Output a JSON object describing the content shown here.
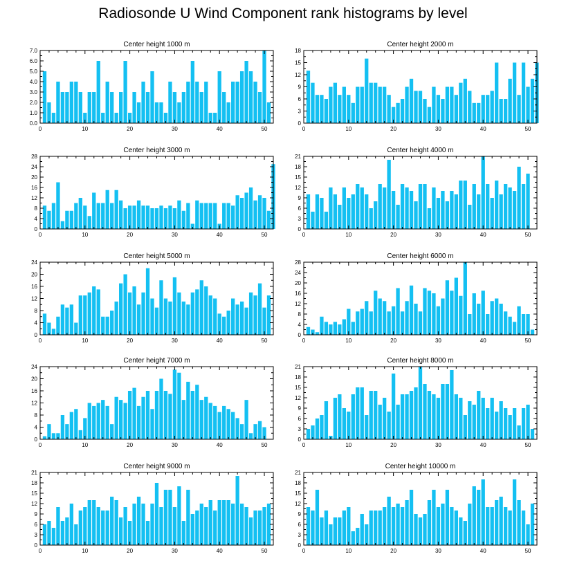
{
  "title": "Radiosonde U Wind Component rank histograms by level",
  "colors": {
    "bar": "#14c0f2",
    "axis": "#000000",
    "background": "#ffffff"
  },
  "chart_data": [
    {
      "type": "bar",
      "title": "Center height 1000 m",
      "xlabel": "",
      "ylabel": "",
      "xlim": [
        0,
        52
      ],
      "ylim": [
        0,
        7
      ],
      "xticks": [
        0,
        10,
        20,
        30,
        40,
        50
      ],
      "yticks": [
        0,
        1,
        2,
        3,
        4,
        5,
        6,
        7
      ],
      "ytick_labels": [
        "0.0",
        "1.0",
        "2.0",
        "3.0",
        "4.0",
        "5.0",
        "6.0",
        "7.0"
      ],
      "values": [
        5,
        2,
        1,
        4,
        3,
        3,
        4,
        4,
        3,
        1,
        3,
        3,
        6,
        1,
        4,
        3,
        1,
        3,
        6,
        1,
        3,
        2,
        4,
        3,
        5,
        2,
        2,
        1,
        4,
        3,
        2,
        3,
        4,
        6,
        4,
        3,
        4,
        1,
        1,
        5,
        3,
        2,
        4,
        4,
        5,
        6,
        5,
        4,
        3,
        7,
        2
      ]
    },
    {
      "type": "bar",
      "title": "Center height 2000 m",
      "xlabel": "",
      "ylabel": "",
      "xlim": [
        0,
        52
      ],
      "ylim": [
        0,
        18
      ],
      "xticks": [
        0,
        10,
        20,
        30,
        40,
        50
      ],
      "yticks": [
        0,
        3,
        6,
        9,
        12,
        15,
        18
      ],
      "ytick_labels": [
        "0",
        "3",
        "6",
        "9",
        "12",
        "15",
        "18"
      ],
      "values": [
        13,
        10,
        7,
        7,
        6,
        9,
        10,
        7,
        9,
        7,
        5,
        9,
        9,
        16,
        10,
        10,
        9,
        9,
        7,
        4,
        5,
        6,
        9,
        11,
        8,
        8,
        6,
        4,
        9,
        7,
        6,
        9,
        9,
        7,
        10,
        11,
        8,
        5,
        5,
        7,
        7,
        8,
        15,
        6,
        6,
        11,
        15,
        7,
        15,
        9,
        11,
        15
      ]
    },
    {
      "type": "bar",
      "title": "Center height 3000 m",
      "xlabel": "",
      "ylabel": "",
      "xlim": [
        0,
        52
      ],
      "ylim": [
        0,
        28
      ],
      "xticks": [
        0,
        10,
        20,
        30,
        40,
        50
      ],
      "yticks": [
        0,
        4,
        8,
        12,
        16,
        20,
        24,
        28
      ],
      "ytick_labels": [
        "0",
        "4",
        "8",
        "12",
        "16",
        "20",
        "24",
        "28"
      ],
      "values": [
        9,
        7,
        10,
        18,
        3,
        7,
        7,
        10,
        12,
        9,
        5,
        14,
        10,
        10,
        15,
        10,
        15,
        11,
        8,
        9,
        9,
        11,
        9,
        9,
        8,
        8,
        9,
        8,
        9,
        8,
        11,
        7,
        10,
        2,
        11,
        10,
        10,
        10,
        10,
        2,
        10,
        10,
        9,
        13,
        12,
        14,
        16,
        11,
        13,
        12,
        7,
        25
      ]
    },
    {
      "type": "bar",
      "title": "Center height 4000 m",
      "xlabel": "",
      "ylabel": "",
      "xlim": [
        0,
        52
      ],
      "ylim": [
        0,
        21
      ],
      "xticks": [
        0,
        10,
        20,
        30,
        40,
        50
      ],
      "yticks": [
        0,
        3,
        6,
        9,
        12,
        15,
        18,
        21
      ],
      "ytick_labels": [
        "0",
        "3",
        "6",
        "9",
        "12",
        "15",
        "18",
        "21"
      ],
      "values": [
        10,
        5,
        10,
        9,
        5,
        12,
        10,
        7,
        12,
        9,
        10,
        13,
        12,
        10,
        6,
        8,
        13,
        12,
        20,
        11,
        7,
        13,
        12,
        11,
        8,
        13,
        13,
        6,
        12,
        9,
        11,
        8,
        11,
        10,
        14,
        14,
        7,
        13,
        10,
        21,
        13,
        9,
        14,
        10,
        13,
        12,
        11,
        18,
        13,
        16
      ]
    },
    {
      "type": "bar",
      "title": "Center height 5000 m",
      "xlabel": "",
      "ylabel": "",
      "xlim": [
        0,
        52
      ],
      "ylim": [
        0,
        24
      ],
      "xticks": [
        0,
        10,
        20,
        30,
        40,
        50
      ],
      "yticks": [
        0,
        4,
        8,
        12,
        16,
        20,
        24
      ],
      "ytick_labels": [
        "0",
        "4",
        "8",
        "12",
        "16",
        "20",
        "24"
      ],
      "values": [
        7,
        4,
        2,
        6,
        10,
        9,
        10,
        4,
        13,
        13,
        14,
        16,
        15,
        6,
        6,
        8,
        11,
        17,
        20,
        14,
        16,
        10,
        14,
        22,
        12,
        9,
        18,
        12,
        11,
        19,
        14,
        11,
        10,
        14,
        15,
        18,
        16,
        13,
        12,
        7,
        6,
        8,
        12,
        10,
        11,
        9,
        14,
        13,
        17,
        9,
        13
      ]
    },
    {
      "type": "bar",
      "title": "Center height 6000 m",
      "xlabel": "",
      "ylabel": "",
      "xlim": [
        0,
        52
      ],
      "ylim": [
        0,
        28
      ],
      "xticks": [
        0,
        10,
        20,
        30,
        40,
        50
      ],
      "yticks": [
        0,
        4,
        8,
        12,
        16,
        20,
        24,
        28
      ],
      "ytick_labels": [
        "0",
        "4",
        "8",
        "12",
        "16",
        "20",
        "24",
        "28"
      ],
      "values": [
        3,
        2,
        1,
        7,
        5,
        4,
        5,
        4,
        6,
        10,
        5,
        9,
        10,
        13,
        9,
        17,
        14,
        13,
        9,
        11,
        18,
        9,
        13,
        19,
        12,
        9,
        18,
        17,
        16,
        11,
        14,
        21,
        17,
        22,
        15,
        28,
        8,
        16,
        12,
        17,
        8,
        13,
        14,
        12,
        9,
        7,
        5,
        11,
        8,
        8,
        2
      ]
    },
    {
      "type": "bar",
      "title": "Center height 7000 m",
      "xlabel": "",
      "ylabel": "",
      "xlim": [
        0,
        52
      ],
      "ylim": [
        0,
        24
      ],
      "xticks": [
        0,
        10,
        20,
        30,
        40,
        50
      ],
      "yticks": [
        0,
        4,
        8,
        12,
        16,
        20,
        24
      ],
      "ytick_labels": [
        "0",
        "4",
        "8",
        "12",
        "16",
        "20",
        "24"
      ],
      "values": [
        1,
        5,
        2,
        2,
        8,
        5,
        9,
        10,
        3,
        7,
        12,
        11,
        12,
        13,
        11,
        5,
        14,
        13,
        12,
        16,
        17,
        11,
        14,
        16,
        10,
        16,
        20,
        16,
        15,
        23,
        22,
        13,
        19,
        16,
        18,
        13,
        14,
        12,
        11,
        9,
        11,
        10,
        9,
        7,
        5,
        13,
        2,
        5,
        6,
        4
      ]
    },
    {
      "type": "bar",
      "title": "Center height 8000 m",
      "xlabel": "",
      "ylabel": "",
      "xlim": [
        0,
        52
      ],
      "ylim": [
        0,
        21
      ],
      "xticks": [
        0,
        10,
        20,
        30,
        40,
        50
      ],
      "yticks": [
        0,
        3,
        6,
        9,
        12,
        15,
        18,
        21
      ],
      "ytick_labels": [
        "0",
        "3",
        "6",
        "9",
        "12",
        "15",
        "18",
        "21"
      ],
      "values": [
        3,
        4,
        6,
        7,
        11,
        1,
        12,
        13,
        9,
        8,
        13,
        15,
        15,
        7,
        14,
        14,
        10,
        12,
        8,
        19,
        10,
        13,
        13,
        14,
        15,
        21,
        16,
        14,
        13,
        12,
        16,
        16,
        20,
        13,
        12,
        7,
        11,
        10,
        14,
        12,
        9,
        12,
        8,
        11,
        9,
        7,
        9,
        4,
        9,
        10,
        3
      ]
    },
    {
      "type": "bar",
      "title": "Center height 9000 m",
      "xlabel": "",
      "ylabel": "",
      "xlim": [
        0,
        52
      ],
      "ylim": [
        0,
        21
      ],
      "xticks": [
        0,
        10,
        20,
        30,
        40,
        50
      ],
      "yticks": [
        0,
        3,
        6,
        9,
        12,
        15,
        18,
        21
      ],
      "ytick_labels": [
        "0",
        "3",
        "6",
        "9",
        "12",
        "15",
        "18",
        "21"
      ],
      "values": [
        6,
        7,
        5,
        11,
        7,
        8,
        12,
        6,
        10,
        11,
        13,
        13,
        11,
        10,
        10,
        14,
        13,
        8,
        11,
        7,
        12,
        14,
        12,
        7,
        12,
        18,
        11,
        16,
        16,
        11,
        17,
        7,
        16,
        9,
        10,
        12,
        11,
        13,
        10,
        13,
        13,
        13,
        12,
        20,
        12,
        11,
        8,
        10,
        10,
        11,
        12
      ]
    },
    {
      "type": "bar",
      "title": "Center height 10000 m",
      "xlabel": "",
      "ylabel": "",
      "xlim": [
        0,
        52
      ],
      "ylim": [
        0,
        21
      ],
      "xticks": [
        0,
        10,
        20,
        30,
        40,
        50
      ],
      "yticks": [
        0,
        3,
        6,
        9,
        12,
        15,
        18,
        21
      ],
      "ytick_labels": [
        "0",
        "3",
        "6",
        "9",
        "12",
        "15",
        "18",
        "21"
      ],
      "values": [
        11,
        10,
        16,
        8,
        10,
        6,
        8,
        8,
        10,
        11,
        4,
        5,
        9,
        6,
        10,
        10,
        10,
        11,
        14,
        11,
        12,
        11,
        13,
        16,
        9,
        8,
        9,
        13,
        16,
        11,
        12,
        16,
        11,
        10,
        8,
        7,
        12,
        17,
        16,
        19,
        11,
        11,
        13,
        14,
        11,
        10,
        19,
        13,
        10,
        6,
        12
      ]
    }
  ]
}
